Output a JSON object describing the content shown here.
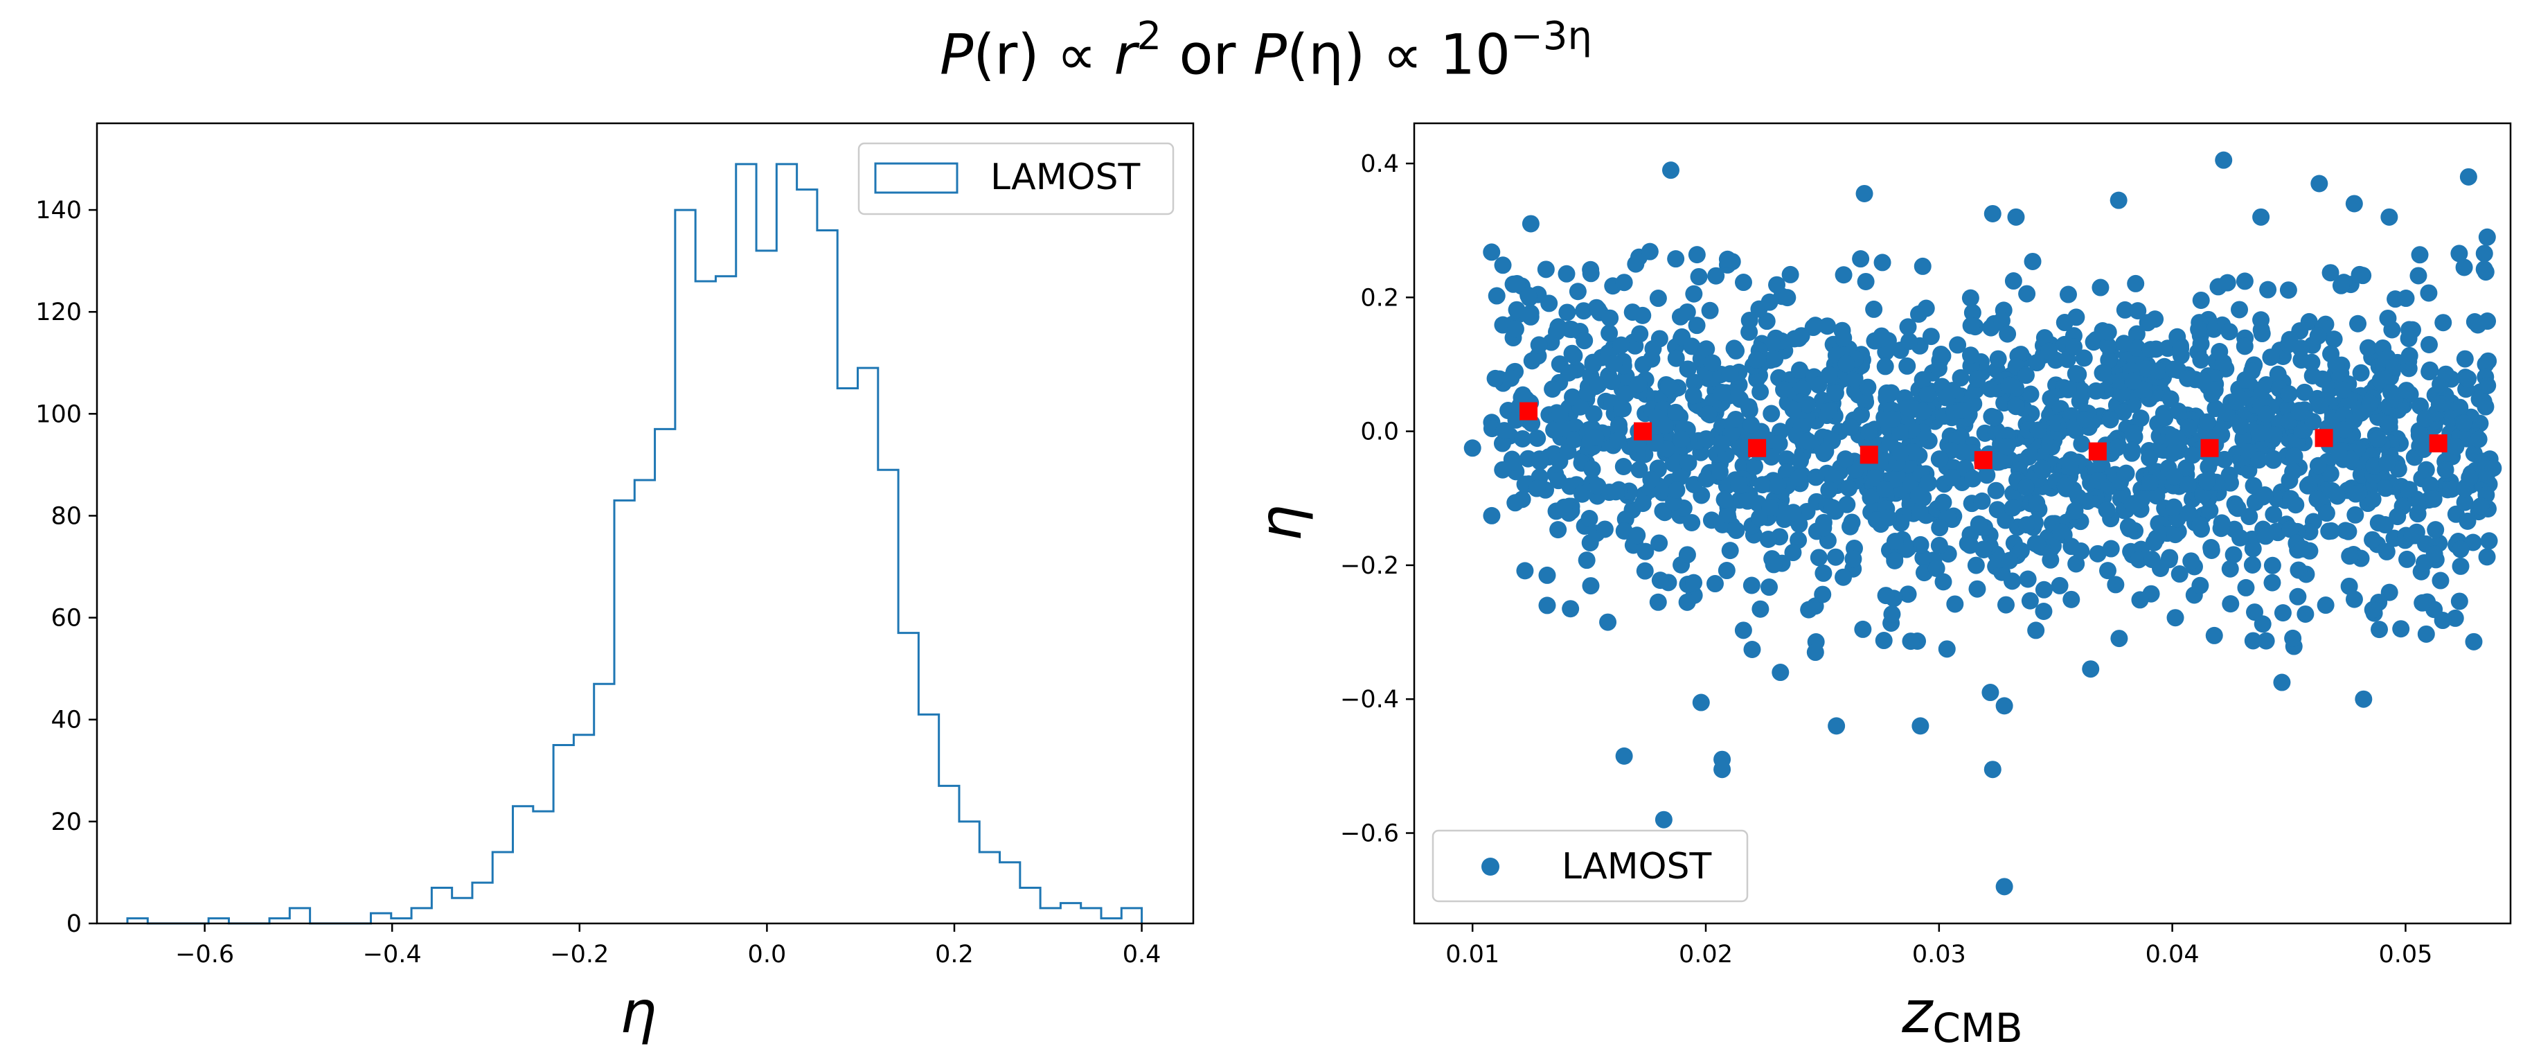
{
  "figure": {
    "title_parts": {
      "p1": "P",
      "arg1": "(r)",
      "prop1": " ∝ ",
      "base1": "r",
      "exp1": "2",
      "conj": " or ",
      "p2": "P",
      "arg2": "(η)",
      "prop2": " ∝ ",
      "base2": "10",
      "exp2": "−3η"
    }
  },
  "chart_data": [
    {
      "type": "histogram",
      "xlabel": "η",
      "ylabel": "",
      "xlim": [
        -0.715,
        0.455
      ],
      "ylim": [
        0,
        157
      ],
      "xticks": [
        -0.6,
        -0.4,
        -0.2,
        0.0,
        0.2,
        0.4
      ],
      "xtick_labels": [
        "−0.6",
        "−0.4",
        "−0.2",
        "0.0",
        "0.2",
        "0.4"
      ],
      "yticks": [
        0,
        20,
        40,
        60,
        80,
        100,
        120,
        140
      ],
      "ytick_labels": [
        "0",
        "20",
        "40",
        "60",
        "80",
        "100",
        "120",
        "140"
      ],
      "bin_start": -0.6825,
      "bin_width": 0.02165,
      "counts": [
        1,
        0,
        0,
        0,
        1,
        0,
        0,
        1,
        3,
        0,
        0,
        0,
        2,
        1,
        3,
        7,
        5,
        8,
        14,
        23,
        22,
        35,
        37,
        47,
        83,
        87,
        97,
        140,
        126,
        127,
        149,
        132,
        149,
        144,
        136,
        105,
        109,
        89,
        57,
        41,
        27,
        20,
        14,
        12,
        7,
        3,
        4,
        3,
        1,
        3
      ],
      "legend": [
        "LAMOST"
      ],
      "legend_loc": "upper right",
      "color": "#1f77b4"
    },
    {
      "type": "scatter",
      "xlabel": "z",
      "xlabel_sub": "CMB",
      "ylabel": "η",
      "xlim": [
        0.0075,
        0.0545
      ],
      "ylim": [
        -0.735,
        0.46
      ],
      "xticks": [
        0.01,
        0.02,
        0.03,
        0.04,
        0.05
      ],
      "xtick_labels": [
        "0.01",
        "0.02",
        "0.03",
        "0.04",
        "0.05"
      ],
      "yticks": [
        -0.6,
        -0.4,
        -0.2,
        0.0,
        0.2,
        0.4
      ],
      "ytick_labels": [
        "−0.6",
        "−0.4",
        "−0.2",
        "0.0",
        "0.2",
        "0.4"
      ],
      "legend": [
        "LAMOST"
      ],
      "legend_loc": "lower left",
      "point_color": "#1f77b4",
      "binned_color": "#ff0000",
      "n_points": 1650,
      "points": [
        [
          0.01,
          -0.025
        ],
        [
          0.0125,
          0.31
        ],
        [
          0.0185,
          0.39
        ],
        [
          0.0182,
          -0.58
        ],
        [
          0.0328,
          -0.68
        ],
        [
          0.0323,
          -0.505
        ],
        [
          0.0207,
          -0.49
        ],
        [
          0.0207,
          -0.505
        ],
        [
          0.0165,
          -0.485
        ],
        [
          0.0198,
          -0.405
        ],
        [
          0.0256,
          -0.44
        ],
        [
          0.0292,
          -0.44
        ],
        [
          0.0322,
          -0.39
        ],
        [
          0.0328,
          -0.41
        ],
        [
          0.0447,
          -0.375
        ],
        [
          0.0482,
          -0.4
        ],
        [
          0.0268,
          0.355
        ],
        [
          0.0323,
          0.325
        ],
        [
          0.0333,
          0.32
        ],
        [
          0.0377,
          0.345
        ],
        [
          0.0422,
          0.405
        ],
        [
          0.0438,
          0.32
        ],
        [
          0.0463,
          0.37
        ],
        [
          0.0478,
          0.34
        ],
        [
          0.0493,
          0.32
        ],
        [
          0.0527,
          0.38
        ],
        [
          0.0535,
          0.29
        ],
        [
          0.0132,
          -0.215
        ],
        [
          0.0132,
          -0.26
        ],
        [
          0.0142,
          -0.265
        ],
        [
          0.0158,
          -0.285
        ],
        [
          0.0232,
          -0.36
        ],
        [
          0.0247,
          -0.33
        ],
        [
          0.0365,
          -0.355
        ],
        [
          0.0418,
          -0.305
        ],
        [
          0.0498,
          -0.295
        ]
      ],
      "cloud": [
        {
          "x0": 0.0108,
          "x1": 0.015,
          "y": 0.045,
          "sd": 0.105,
          "n": 120
        },
        {
          "x0": 0.015,
          "x1": 0.02,
          "y": 0.01,
          "sd": 0.115,
          "n": 190
        },
        {
          "x0": 0.02,
          "x1": 0.025,
          "y": -0.02,
          "sd": 0.115,
          "n": 210
        },
        {
          "x0": 0.025,
          "x1": 0.03,
          "y": -0.035,
          "sd": 0.115,
          "n": 215
        },
        {
          "x0": 0.03,
          "x1": 0.035,
          "y": -0.04,
          "sd": 0.115,
          "n": 220
        },
        {
          "x0": 0.035,
          "x1": 0.04,
          "y": -0.03,
          "sd": 0.11,
          "n": 225
        },
        {
          "x0": 0.04,
          "x1": 0.045,
          "y": -0.025,
          "sd": 0.11,
          "n": 225
        },
        {
          "x0": 0.045,
          "x1": 0.05,
          "y": -0.01,
          "sd": 0.11,
          "n": 220
        },
        {
          "x0": 0.05,
          "x1": 0.0538,
          "y": -0.02,
          "sd": 0.11,
          "n": 150
        }
      ],
      "binned": [
        {
          "x": 0.0124,
          "y": 0.03
        },
        {
          "x": 0.0173,
          "y": 0.0
        },
        {
          "x": 0.0222,
          "y": -0.025
        },
        {
          "x": 0.027,
          "y": -0.035
        },
        {
          "x": 0.0319,
          "y": -0.043
        },
        {
          "x": 0.0368,
          "y": -0.03
        },
        {
          "x": 0.0416,
          "y": -0.025
        },
        {
          "x": 0.0465,
          "y": -0.01
        },
        {
          "x": 0.0514,
          "y": -0.018
        }
      ]
    }
  ]
}
